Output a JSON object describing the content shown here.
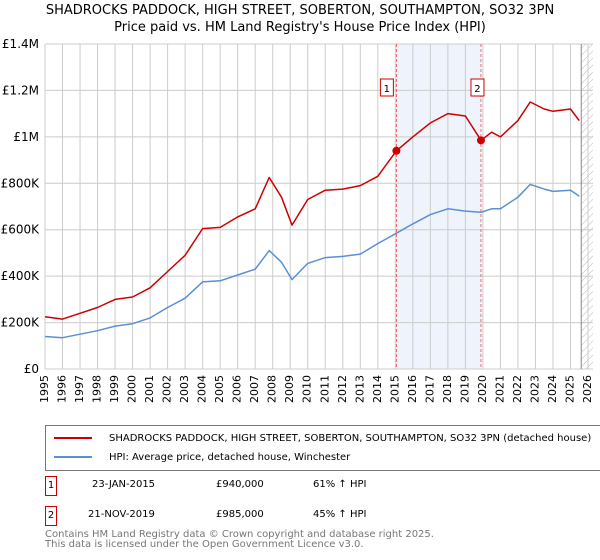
{
  "chart_data": {
    "type": "line",
    "title": "SHADROCKS PADDOCK, HIGH STREET, SOBERTON, SOUTHAMPTON, SO32 3PN",
    "subtitle": "Price paid vs. HM Land Registry's House Price Index (HPI)",
    "xlim": [
      1995,
      2026
    ],
    "ylim": [
      0,
      1400000
    ],
    "y_ticks": [
      {
        "v": 0,
        "label": "£0"
      },
      {
        "v": 200000,
        "label": "£200K"
      },
      {
        "v": 400000,
        "label": "£400K"
      },
      {
        "v": 600000,
        "label": "£600K"
      },
      {
        "v": 800000,
        "label": "£800K"
      },
      {
        "v": 1000000,
        "label": "£1M"
      },
      {
        "v": 1200000,
        "label": "£1.2M"
      },
      {
        "v": 1400000,
        "label": "£1.4M"
      }
    ],
    "x_ticks": [
      "1995",
      "1996",
      "1997",
      "1998",
      "1999",
      "2000",
      "2001",
      "2002",
      "2003",
      "2004",
      "2005",
      "2006",
      "2007",
      "2008",
      "2009",
      "2010",
      "2011",
      "2012",
      "2013",
      "2014",
      "2015",
      "2016",
      "2017",
      "2018",
      "2019",
      "2020",
      "2021",
      "2022",
      "2023",
      "2024",
      "2025",
      "2026"
    ],
    "grid": true,
    "series": [
      {
        "name": "SHADROCKS PADDOCK, HIGH STREET, SOBERTON, SOUTHAMPTON, SO32 3PN (detached house)",
        "color": "#cc0000",
        "x": [
          1995,
          1996,
          1997,
          1998,
          1999,
          2000,
          2001,
          2002,
          2003,
          2004,
          2005,
          2006,
          2007,
          2007.8,
          2008.5,
          2009.1,
          2010,
          2011,
          2012,
          2013,
          2014,
          2015.06,
          2016,
          2017,
          2018,
          2019,
          2019.89,
          2020.5,
          2021,
          2022,
          2022.7,
          2023.5,
          2024,
          2025,
          2025.5
        ],
        "y": [
          225000,
          215000,
          240000,
          265000,
          300000,
          310000,
          350000,
          420000,
          490000,
          605000,
          610000,
          655000,
          690000,
          825000,
          740000,
          620000,
          730000,
          770000,
          775000,
          790000,
          830000,
          940000,
          1000000,
          1060000,
          1100000,
          1090000,
          985000,
          1020000,
          1000000,
          1070000,
          1150000,
          1120000,
          1110000,
          1120000,
          1070000
        ]
      },
      {
        "name": "HPI: Average price, detached house, Winchester",
        "color": "#5b8fd4",
        "x": [
          1995,
          1996,
          1997,
          1998,
          1999,
          2000,
          2001,
          2002,
          2003,
          2004,
          2005,
          2006,
          2007,
          2007.8,
          2008.5,
          2009.1,
          2010,
          2011,
          2012,
          2013,
          2014,
          2015.06,
          2016,
          2017,
          2018,
          2019,
          2019.89,
          2020.5,
          2021,
          2022,
          2022.7,
          2023.5,
          2024,
          2025,
          2025.5
        ],
        "y": [
          140000,
          135000,
          150000,
          165000,
          185000,
          195000,
          220000,
          265000,
          305000,
          375000,
          380000,
          405000,
          430000,
          510000,
          460000,
          385000,
          455000,
          480000,
          485000,
          495000,
          540000,
          585000,
          625000,
          665000,
          690000,
          680000,
          675000,
          690000,
          690000,
          740000,
          795000,
          775000,
          765000,
          770000,
          745000
        ]
      }
    ],
    "sales": [
      {
        "label": "1",
        "x": 2015.06,
        "y": 940000,
        "date": "23-JAN-2015",
        "price": "£940,000",
        "hpi": "61% ↑ HPI"
      },
      {
        "label": "2",
        "x": 2019.89,
        "y": 985000,
        "date": "21-NOV-2019",
        "price": "£985,000",
        "hpi": "45% ↑ HPI"
      }
    ],
    "shaded_range": [
      2015.06,
      2019.89
    ],
    "hatched_from": 2025.5,
    "legend_placement": "below"
  },
  "footer": {
    "line1": "Contains HM Land Registry data © Crown copyright and database right 2025.",
    "line2": "This data is licensed under the Open Government Licence v3.0."
  }
}
